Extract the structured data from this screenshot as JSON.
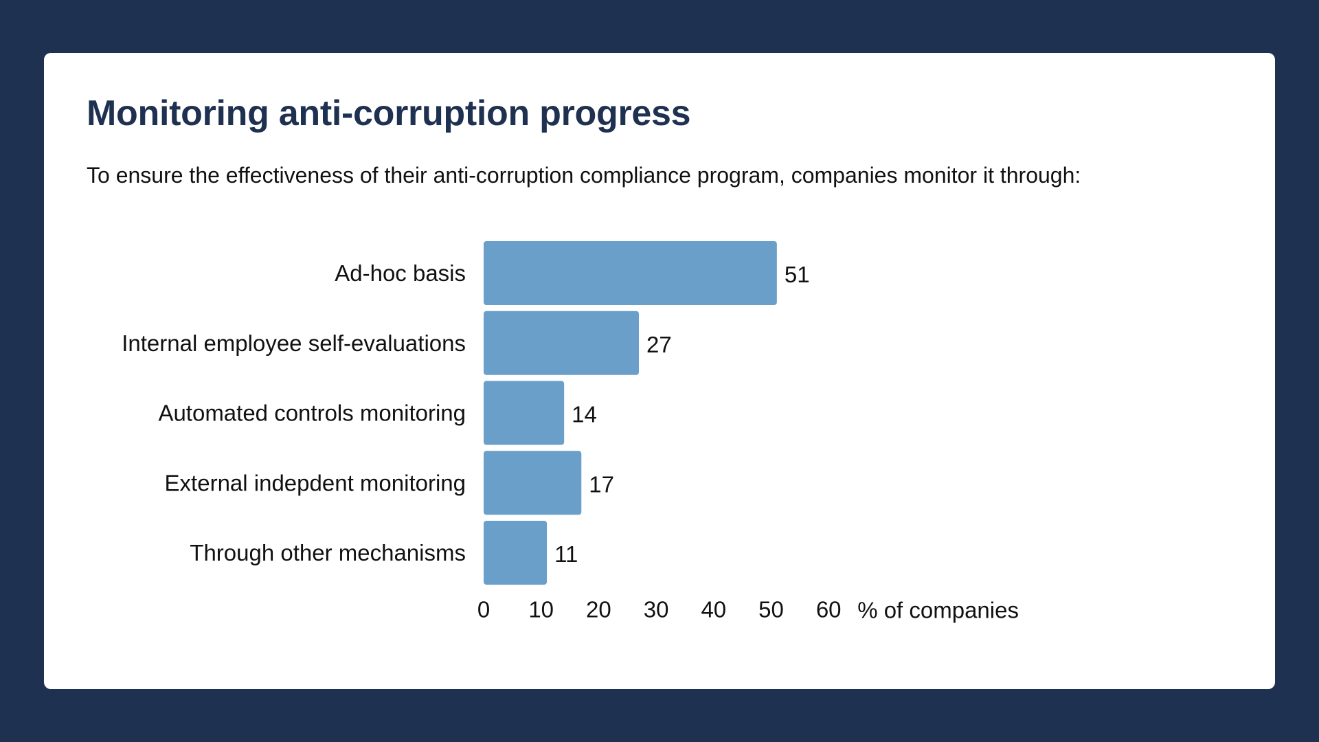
{
  "colors": {
    "background": "#1f3150",
    "card": "#ffffff",
    "title": "#1f3150",
    "bar": "#6a9fc9",
    "text": "#111111"
  },
  "header": {
    "title": "Monitoring anti-corruption progress",
    "subtitle": "To ensure the effectiveness of their anti-corruption compliance program, companies monitor it through:"
  },
  "chart_data": {
    "type": "bar",
    "orientation": "horizontal",
    "title": "Monitoring anti-corruption progress",
    "categories": [
      "Ad-hoc basis",
      "Internal employee self-evaluations",
      "Automated controls monitoring",
      "External indepdent monitoring",
      "Through other mechanisms"
    ],
    "values": [
      51,
      27,
      14,
      17,
      11
    ],
    "xlabel": "% of companies",
    "ylabel": "",
    "xlim": [
      0,
      60
    ],
    "xticks": [
      0,
      10,
      20,
      30,
      40,
      50,
      60
    ],
    "grid": false,
    "legend": "none",
    "data_labels": true
  }
}
